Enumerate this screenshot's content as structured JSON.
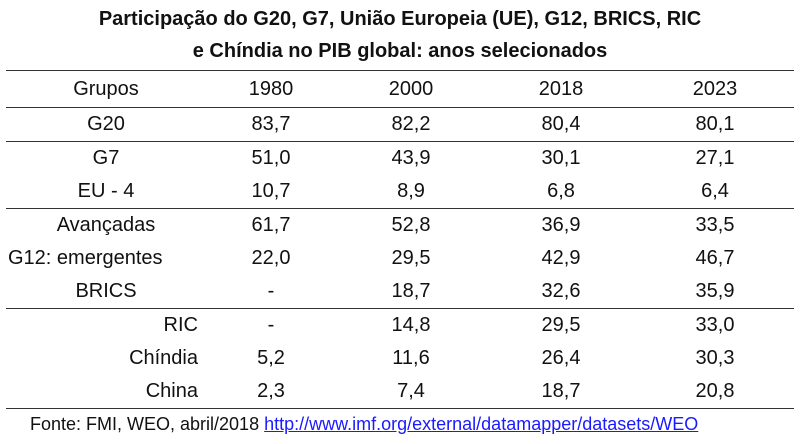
{
  "title_line1": "Participação do G20, G7, União Europeia (UE), G12, BRICS, RIC",
  "title_line2": "e Chíndia no PIB global: anos selecionados",
  "headers": [
    "Grupos",
    "1980",
    "2000",
    "2018",
    "2023"
  ],
  "rows": [
    {
      "group": "G20",
      "values": [
        "83,7",
        "82,2",
        "80,4",
        "80,1"
      ]
    },
    {
      "group": "G7",
      "values": [
        "51,0",
        "43,9",
        "30,1",
        "27,1"
      ]
    },
    {
      "group": "EU - 4",
      "values": [
        "10,7",
        "8,9",
        "6,8",
        "6,4"
      ]
    },
    {
      "group": "Avançadas",
      "values": [
        "61,7",
        "52,8",
        "36,9",
        "33,5"
      ]
    },
    {
      "group": "G12: emergentes",
      "values": [
        "22,0",
        "29,5",
        "42,9",
        "46,7"
      ]
    },
    {
      "group": "BRICS",
      "values": [
        "-",
        "18,7",
        "32,6",
        "35,9"
      ]
    },
    {
      "group": "RIC",
      "values": [
        "-",
        "14,8",
        "29,5",
        "33,0"
      ]
    },
    {
      "group": "Chíndia",
      "values": [
        "5,2",
        "11,6",
        "26,4",
        "30,3"
      ]
    },
    {
      "group": "China",
      "values": [
        "2,3",
        "7,4",
        "18,7",
        "20,8"
      ]
    }
  ],
  "source": {
    "prefix": "Fonte: FMI, WEO, abril/2018",
    "link": "http://www.imf.org/external/datamapper/datasets/WEO"
  }
}
